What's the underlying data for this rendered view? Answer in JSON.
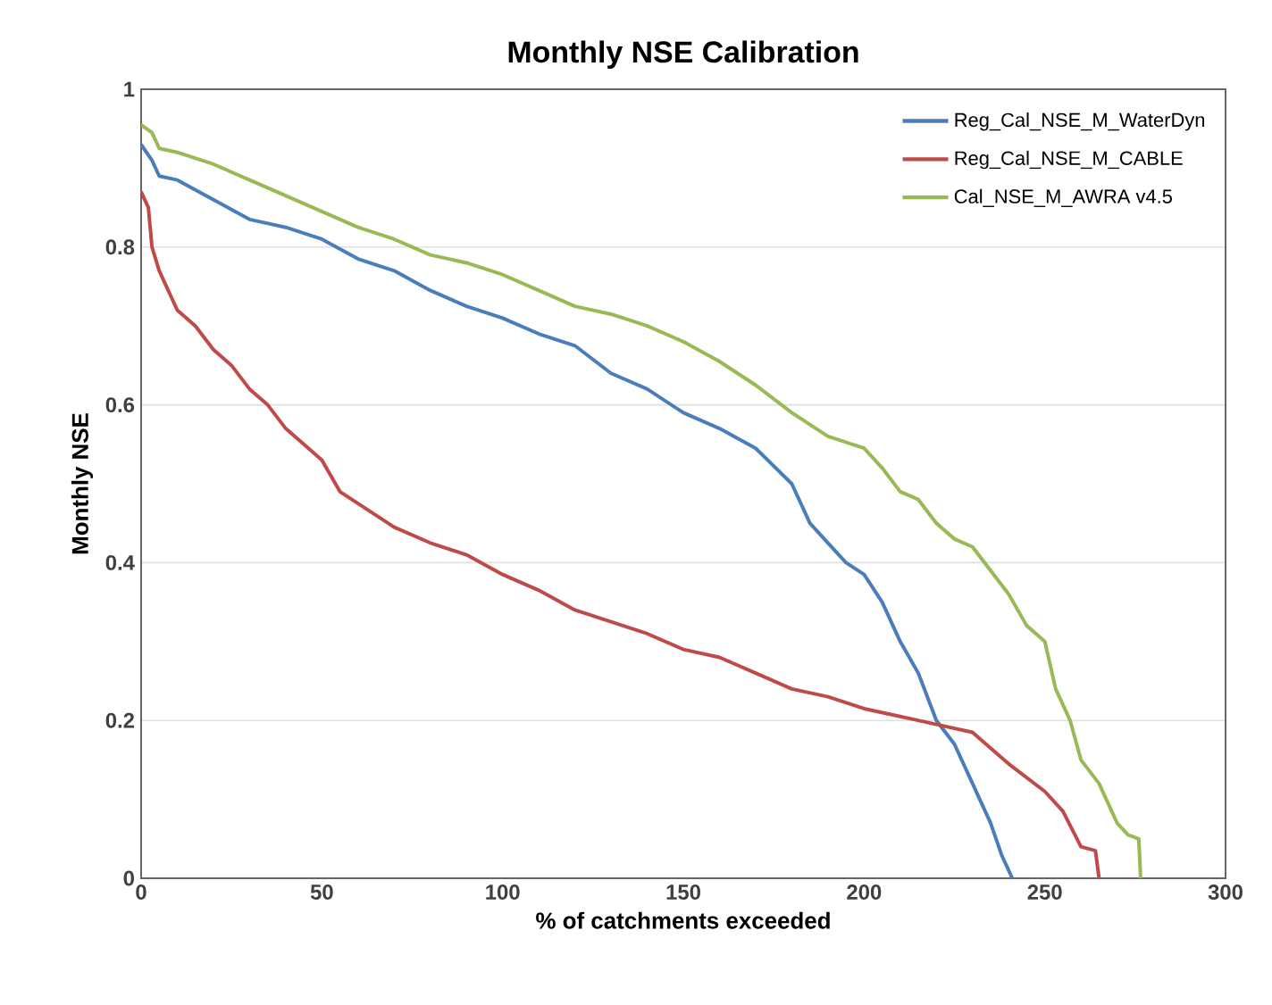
{
  "chart_data": {
    "type": "line",
    "title": "Monthly NSE Calibration",
    "xlabel": "% of catchments exceeded",
    "ylabel": "Monthly NSE",
    "xlim": [
      0,
      300
    ],
    "xticks": [
      0,
      50,
      100,
      150,
      200,
      250,
      300
    ],
    "ylim": [
      0,
      1
    ],
    "yticks": [
      0,
      0.2,
      0.4,
      0.6,
      0.8,
      1
    ],
    "grid": "y",
    "legend": "top right",
    "marker": "none",
    "line_style": "solid",
    "series": [
      {
        "name": "Reg_Cal_NSE_M_WaterDyn",
        "color": "#4a7ebb",
        "x": [
          0,
          3,
          5,
          10,
          20,
          30,
          40,
          50,
          60,
          70,
          80,
          90,
          100,
          110,
          120,
          130,
          140,
          150,
          160,
          170,
          180,
          185,
          190,
          195,
          200,
          205,
          210,
          215,
          220,
          225,
          230,
          235,
          238,
          241
        ],
        "values": [
          0.93,
          0.91,
          0.89,
          0.885,
          0.86,
          0.835,
          0.825,
          0.81,
          0.785,
          0.77,
          0.745,
          0.725,
          0.71,
          0.69,
          0.675,
          0.64,
          0.62,
          0.59,
          0.57,
          0.545,
          0.5,
          0.45,
          0.425,
          0.4,
          0.385,
          0.35,
          0.3,
          0.26,
          0.2,
          0.17,
          0.12,
          0.07,
          0.03,
          0
        ]
      },
      {
        "name": "Reg_Cal_NSE_M_CABLE",
        "color": "#be4b48",
        "x": [
          0,
          2,
          3,
          5,
          10,
          15,
          20,
          25,
          30,
          35,
          40,
          50,
          55,
          60,
          70,
          80,
          90,
          100,
          110,
          120,
          130,
          140,
          150,
          160,
          170,
          180,
          190,
          200,
          210,
          220,
          230,
          235,
          240,
          250,
          255,
          260,
          264,
          265
        ],
        "values": [
          0.87,
          0.85,
          0.8,
          0.77,
          0.72,
          0.7,
          0.67,
          0.65,
          0.62,
          0.6,
          0.57,
          0.53,
          0.49,
          0.475,
          0.445,
          0.425,
          0.41,
          0.385,
          0.365,
          0.34,
          0.325,
          0.31,
          0.29,
          0.28,
          0.26,
          0.24,
          0.23,
          0.215,
          0.205,
          0.195,
          0.185,
          0.165,
          0.145,
          0.11,
          0.085,
          0.04,
          0.035,
          0
        ]
      },
      {
        "name": "Cal_NSE_M_AWRA v4.5",
        "color": "#98b954",
        "x": [
          0,
          3,
          5,
          10,
          20,
          30,
          40,
          50,
          60,
          70,
          80,
          90,
          100,
          110,
          120,
          130,
          140,
          150,
          160,
          170,
          180,
          190,
          200,
          205,
          210,
          215,
          220,
          225,
          230,
          235,
          240,
          245,
          250,
          253,
          257,
          260,
          265,
          270,
          273,
          276,
          276.5
        ],
        "values": [
          0.955,
          0.945,
          0.925,
          0.92,
          0.905,
          0.885,
          0.865,
          0.845,
          0.825,
          0.81,
          0.79,
          0.78,
          0.765,
          0.745,
          0.725,
          0.715,
          0.7,
          0.68,
          0.655,
          0.625,
          0.59,
          0.56,
          0.545,
          0.52,
          0.49,
          0.48,
          0.45,
          0.43,
          0.42,
          0.39,
          0.36,
          0.32,
          0.3,
          0.24,
          0.2,
          0.15,
          0.12,
          0.07,
          0.055,
          0.05,
          0
        ]
      }
    ]
  }
}
